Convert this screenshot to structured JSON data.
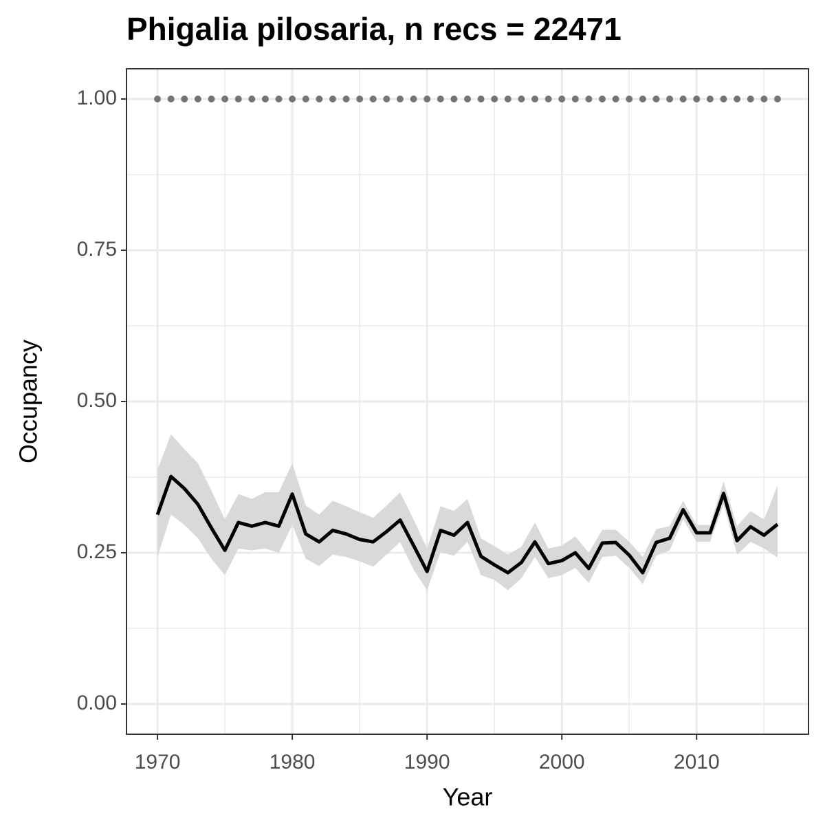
{
  "chart_data": {
    "type": "line",
    "title": "Phigalia pilosaria, n recs = 22471",
    "xlabel": "Year",
    "ylabel": "Occupancy",
    "x": [
      1970,
      1971,
      1972,
      1973,
      1974,
      1975,
      1976,
      1977,
      1978,
      1979,
      1980,
      1981,
      1982,
      1983,
      1984,
      1985,
      1986,
      1987,
      1988,
      1989,
      1990,
      1991,
      1992,
      1993,
      1994,
      1995,
      1996,
      1997,
      1998,
      1999,
      2000,
      2001,
      2002,
      2003,
      2004,
      2005,
      2006,
      2007,
      2008,
      2009,
      2010,
      2011,
      2012,
      2013,
      2014,
      2015,
      2016
    ],
    "series": [
      {
        "color": "#000000",
        "style": "solid",
        "values": [
          0.313,
          0.376,
          0.356,
          0.33,
          0.291,
          0.254,
          0.3,
          0.294,
          0.3,
          0.294,
          0.347,
          0.281,
          0.268,
          0.287,
          0.281,
          0.272,
          0.268,
          0.285,
          0.304,
          0.262,
          0.219,
          0.287,
          0.279,
          0.3,
          0.244,
          0.23,
          0.217,
          0.234,
          0.268,
          0.232,
          0.237,
          0.25,
          0.224,
          0.266,
          0.267,
          0.246,
          0.217,
          0.267,
          0.274,
          0.321,
          0.283,
          0.283,
          0.348,
          0.27,
          0.293,
          0.279,
          0.297
        ]
      },
      {
        "color": "#757575",
        "style": "dotted",
        "values": [
          1,
          1,
          1,
          1,
          1,
          1,
          1,
          1,
          1,
          1,
          1,
          1,
          1,
          1,
          1,
          1,
          1,
          1,
          1,
          1,
          1,
          1,
          1,
          1,
          1,
          1,
          1,
          1,
          1,
          1,
          1,
          1,
          1,
          1,
          1,
          1,
          1,
          1,
          1,
          1,
          1,
          1,
          1,
          1,
          1,
          1,
          1
        ]
      }
    ],
    "band": {
      "color": "#d9d9d9",
      "lower": [
        0.243,
        0.313,
        0.296,
        0.274,
        0.24,
        0.213,
        0.257,
        0.254,
        0.257,
        0.25,
        0.296,
        0.24,
        0.228,
        0.247,
        0.243,
        0.236,
        0.227,
        0.247,
        0.268,
        0.222,
        0.188,
        0.251,
        0.245,
        0.268,
        0.213,
        0.205,
        0.188,
        0.208,
        0.243,
        0.208,
        0.213,
        0.225,
        0.2,
        0.243,
        0.245,
        0.225,
        0.198,
        0.245,
        0.254,
        0.305,
        0.268,
        0.268,
        0.33,
        0.247,
        0.268,
        0.257,
        0.242
      ],
      "upper": [
        0.387,
        0.446,
        0.421,
        0.398,
        0.353,
        0.305,
        0.347,
        0.339,
        0.35,
        0.35,
        0.398,
        0.328,
        0.313,
        0.336,
        0.327,
        0.317,
        0.308,
        0.328,
        0.35,
        0.305,
        0.257,
        0.327,
        0.319,
        0.339,
        0.274,
        0.261,
        0.247,
        0.26,
        0.3,
        0.257,
        0.262,
        0.277,
        0.25,
        0.288,
        0.288,
        0.268,
        0.243,
        0.289,
        0.294,
        0.336,
        0.296,
        0.296,
        0.368,
        0.294,
        0.319,
        0.305,
        0.361
      ]
    },
    "xlim": [
      1967.7,
      2018.3
    ],
    "ylim": [
      -0.05,
      1.05
    ],
    "xticks": [
      1970,
      1980,
      1990,
      2000,
      2010
    ],
    "yticks": [
      {
        "value": 0,
        "label": "0.00"
      },
      {
        "value": 0.25,
        "label": "0.25"
      },
      {
        "value": 0.5,
        "label": "0.50"
      },
      {
        "value": 0.75,
        "label": "0.75"
      },
      {
        "value": 1,
        "label": "1.00"
      }
    ],
    "grid": true
  }
}
